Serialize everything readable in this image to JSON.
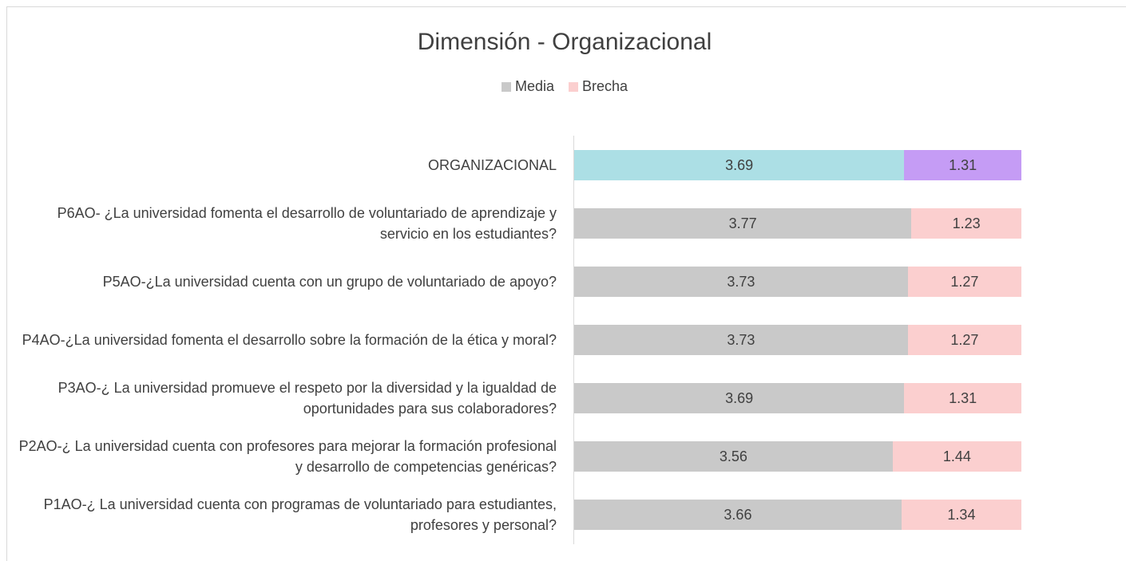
{
  "chart_data": {
    "type": "stacked_barh",
    "title": "Dimensión - Organizacional",
    "categories": [
      "ORGANIZACIONAL",
      "P6AO- ¿La universidad fomenta el desarrollo de voluntariado de aprendizaje y servicio en los estudiantes?",
      "P5AO-¿La universidad cuenta con un grupo de voluntariado de apoyo?",
      "P4AO-¿La universidad fomenta el desarrollo sobre la formación de la ética y moral?",
      "P3AO-¿ La universidad promueve el respeto por la diversidad y la igualdad de oportunidades para sus colaboradores?",
      "P2AO-¿ La universidad cuenta con profesores para mejorar la formación profesional y desarrollo de competencias genéricas?",
      "P1AO-¿ La universidad cuenta con programas de voluntariado para estudiantes, profesores y personal?"
    ],
    "series": [
      {
        "name": "Media",
        "color": "#c9c9c9",
        "colors": [
          "#acdfe5",
          "#c9c9c9",
          "#c9c9c9",
          "#c9c9c9",
          "#c9c9c9",
          "#c9c9c9",
          "#c9c9c9"
        ],
        "values": [
          3.69,
          3.77,
          3.73,
          3.73,
          3.69,
          3.56,
          3.66
        ]
      },
      {
        "name": "Brecha",
        "color": "#fbcfcf",
        "colors": [
          "#c59cf5",
          "#fbcfcf",
          "#fbcfcf",
          "#fbcfcf",
          "#fbcfcf",
          "#fbcfcf",
          "#fbcfcf"
        ],
        "values": [
          1.31,
          1.23,
          1.27,
          1.27,
          1.31,
          1.44,
          1.34
        ]
      }
    ],
    "xlim": [
      0,
      5
    ],
    "legend": "top"
  }
}
